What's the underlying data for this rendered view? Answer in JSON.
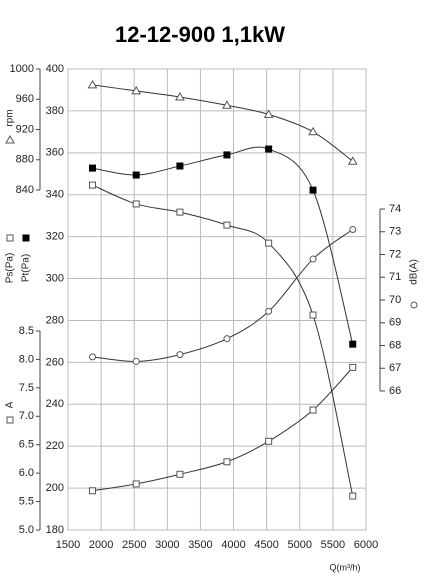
{
  "chart_data": {
    "type": "line",
    "title": "12-12-900 1,1kW",
    "x_label": "Q(m³/h)",
    "x": [
      1870,
      2530,
      3190,
      3900,
      4530,
      5200,
      5800
    ],
    "xlim": [
      1500,
      6000
    ],
    "xticks": [
      1500,
      2000,
      2500,
      3000,
      3500,
      4000,
      4500,
      5000,
      5500,
      6000
    ],
    "ylim": [
      180,
      400
    ],
    "yticks": [
      180,
      200,
      220,
      240,
      260,
      280,
      300,
      320,
      340,
      360,
      380,
      400
    ],
    "rpm_axis": {
      "label": "rpm",
      "ylim": [
        840,
        1000
      ],
      "yticks": [
        840,
        880,
        920,
        960,
        1000
      ]
    },
    "current_axis": {
      "label": "A",
      "ylim": [
        5,
        8.5
      ],
      "yticks": [
        {
          "value": 5,
          "label": "5.0"
        },
        5.5,
        {
          "value": 6,
          "label": "6.0"
        },
        6.5,
        {
          "value": 7,
          "label": "7.0"
        },
        7.5,
        {
          "value": 8,
          "label": "8.0"
        },
        8.5
      ]
    },
    "y2_label": "dB(A)",
    "y2lim": [
      66,
      74
    ],
    "y2ticks": [
      66,
      67,
      68,
      69,
      70,
      71,
      72,
      73,
      74
    ],
    "grid": true,
    "series": [
      {
        "name": "rpm",
        "axis": "rpm",
        "marker": "triangle",
        "color": "#555555",
        "values": [
          979,
          971,
          963,
          952,
          940,
          917,
          878
        ]
      },
      {
        "name": "Pt(Pa)",
        "axis": "y",
        "marker": "filled-square",
        "color": "#000000",
        "values": [
          352.7,
          349.4,
          353.7,
          359,
          361.8,
          342.2,
          268.7
        ]
      },
      {
        "name": "Ps(Pa)",
        "axis": "y",
        "marker": "square",
        "color": "#555555",
        "values": [
          344.6,
          335.6,
          331.7,
          325.5,
          316.9,
          282.6,
          196.2
        ]
      },
      {
        "name": "dB(A)",
        "axis": "y2",
        "marker": "circle",
        "color": "#555555",
        "values": [
          67.5,
          67.3,
          67.6,
          68.3,
          69.5,
          71.8,
          73.1
        ]
      },
      {
        "name": "A",
        "axis": "current",
        "marker": "square",
        "color": "#555555",
        "values": [
          5.69,
          5.81,
          5.98,
          6.2,
          6.56,
          7.11,
          7.86
        ]
      }
    ]
  }
}
